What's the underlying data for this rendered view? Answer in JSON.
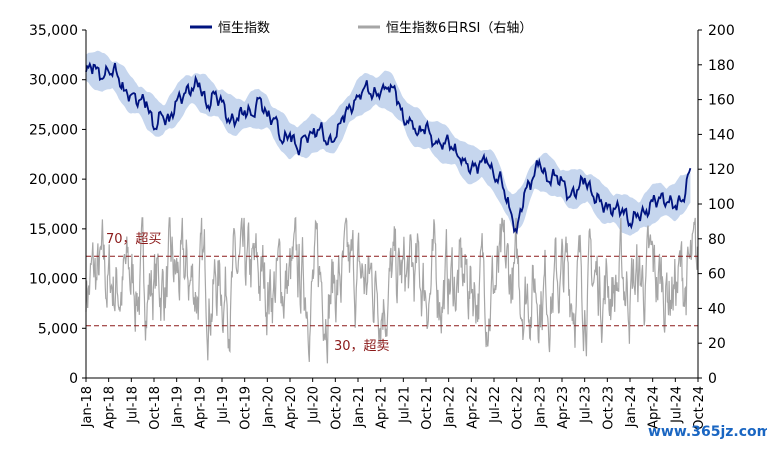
{
  "chart_data": {
    "type": "line",
    "series": [
      {
        "name": "恒生指数",
        "axis": "left",
        "color": "#00137f",
        "style": "line with shaded band",
        "band_color": "#c6d6ee",
        "points": [
          [
            "2018-01",
            30800
          ],
          [
            "2018-02",
            31500
          ],
          [
            "2018-03",
            30100
          ],
          [
            "2018-04",
            30800
          ],
          [
            "2018-05",
            30900
          ],
          [
            "2018-06",
            28900
          ],
          [
            "2018-07",
            28500
          ],
          [
            "2018-08",
            27900
          ],
          [
            "2018-09",
            27800
          ],
          [
            "2018-10",
            25000
          ],
          [
            "2018-11",
            26500
          ],
          [
            "2018-12",
            25800
          ],
          [
            "2019-01",
            27900
          ],
          [
            "2019-02",
            28600
          ],
          [
            "2019-03",
            29100
          ],
          [
            "2019-04",
            29700
          ],
          [
            "2019-05",
            27200
          ],
          [
            "2019-06",
            28600
          ],
          [
            "2019-07",
            27800
          ],
          [
            "2019-08",
            25700
          ],
          [
            "2019-09",
            26100
          ],
          [
            "2019-10",
            26900
          ],
          [
            "2019-11",
            26400
          ],
          [
            "2019-12",
            28200
          ],
          [
            "2020-01",
            26300
          ],
          [
            "2020-02",
            26100
          ],
          [
            "2020-03",
            23600
          ],
          [
            "2020-04",
            24600
          ],
          [
            "2020-05",
            22900
          ],
          [
            "2020-06",
            24400
          ],
          [
            "2020-07",
            24600
          ],
          [
            "2020-08",
            25200
          ],
          [
            "2020-09",
            23500
          ],
          [
            "2020-10",
            24100
          ],
          [
            "2020-11",
            26300
          ],
          [
            "2020-12",
            27200
          ],
          [
            "2021-01",
            28300
          ],
          [
            "2021-02",
            29500
          ],
          [
            "2021-03",
            28400
          ],
          [
            "2021-04",
            28700
          ],
          [
            "2021-05",
            29200
          ],
          [
            "2021-06",
            28800
          ],
          [
            "2021-07",
            26000
          ],
          [
            "2021-08",
            25900
          ],
          [
            "2021-09",
            24600
          ],
          [
            "2021-10",
            25400
          ],
          [
            "2021-11",
            23500
          ],
          [
            "2021-12",
            23400
          ],
          [
            "2022-01",
            23800
          ],
          [
            "2022-02",
            22700
          ],
          [
            "2022-03",
            21900
          ],
          [
            "2022-04",
            21100
          ],
          [
            "2022-05",
            21400
          ],
          [
            "2022-06",
            22000
          ],
          [
            "2022-07",
            20200
          ],
          [
            "2022-08",
            19900
          ],
          [
            "2022-09",
            17200
          ],
          [
            "2022-10",
            14700
          ],
          [
            "2022-11",
            18600
          ],
          [
            "2022-12",
            19800
          ],
          [
            "2023-01",
            21800
          ],
          [
            "2023-02",
            19800
          ],
          [
            "2023-03",
            20400
          ],
          [
            "2023-04",
            19900
          ],
          [
            "2023-05",
            18200
          ],
          [
            "2023-06",
            18900
          ],
          [
            "2023-07",
            20100
          ],
          [
            "2023-08",
            18400
          ],
          [
            "2023-09",
            17800
          ],
          [
            "2023-10",
            17100
          ],
          [
            "2023-11",
            17000
          ],
          [
            "2023-12",
            17000
          ],
          [
            "2024-01",
            15500
          ],
          [
            "2024-02",
            16500
          ],
          [
            "2024-03",
            16500
          ],
          [
            "2024-04",
            17800
          ],
          [
            "2024-05",
            18100
          ],
          [
            "2024-06",
            17700
          ],
          [
            "2024-07",
            17300
          ],
          [
            "2024-08",
            17900
          ],
          [
            "2024-09",
            21100
          ]
        ]
      },
      {
        "name": "恒生指数6日RSI（右轴）",
        "axis": "right",
        "color": "#a6a6a6",
        "style": "oscillating line, 0–100"
      }
    ],
    "reference_lines": [
      {
        "value": 70,
        "axis": "right",
        "label": "70，超买",
        "color": "#8b1a1a",
        "style": "dashed"
      },
      {
        "value": 30,
        "axis": "right",
        "label": "30，超卖",
        "color": "#8b1a1a",
        "style": "dashed"
      }
    ],
    "x_ticks": [
      "Jan-18",
      "Apr-18",
      "Jul-18",
      "Oct-18",
      "Jan-19",
      "Apr-19",
      "Jul-19",
      "Oct-19",
      "Jan-20",
      "Apr-20",
      "Jul-20",
      "Oct-20",
      "Jan-21",
      "Apr-21",
      "Jul-21",
      "Oct-21",
      "Jan-22",
      "Apr-22",
      "Jul-22",
      "Oct-22",
      "Jan-23",
      "Apr-23",
      "Jul-23",
      "Oct-23",
      "Jan-24",
      "Apr-24",
      "Jul-24",
      "Oct-24"
    ],
    "y_left_ticks": [
      "0",
      "5,000",
      "10,000",
      "15,000",
      "20,000",
      "25,000",
      "30,000",
      "35,000"
    ],
    "y_right_ticks": [
      "0",
      "20",
      "40",
      "60",
      "80",
      "100",
      "120",
      "140",
      "160",
      "180",
      "200"
    ],
    "y_left_range": [
      0,
      35000
    ],
    "y_right_range": [
      0,
      200
    ],
    "grid": false,
    "legend_position": "top"
  },
  "legend": [
    {
      "label": "恒生指数",
      "color": "#00137f"
    },
    {
      "label": "恒生指数6日RSI（右轴）",
      "color": "#a6a6a6"
    }
  ],
  "watermark": "www.365jz.com"
}
